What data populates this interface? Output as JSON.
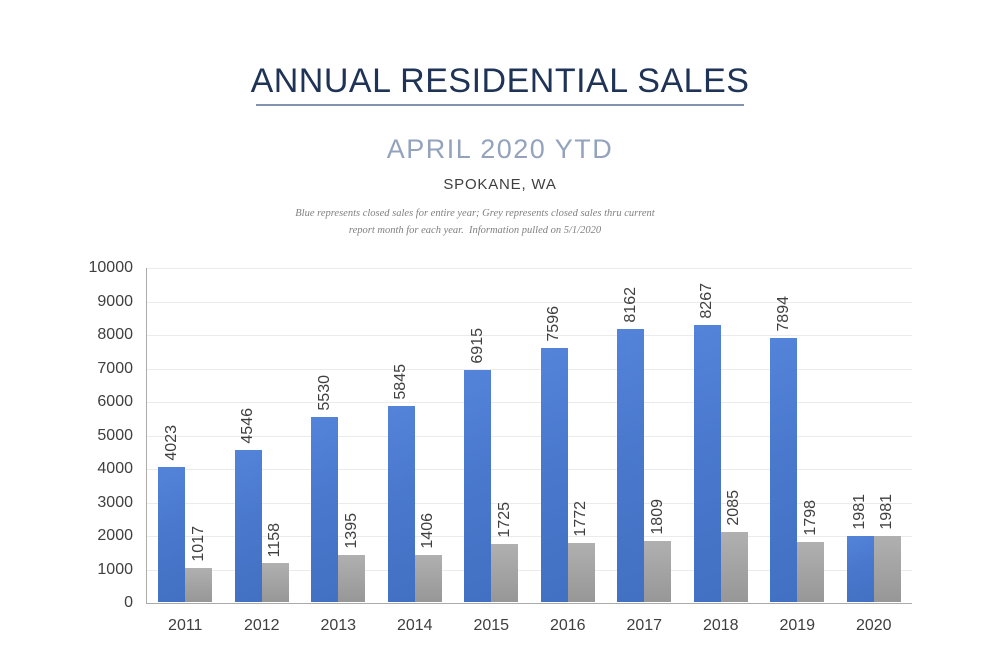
{
  "header": {
    "title": "ANNUAL RESIDENTIAL SALES",
    "subtitle": "APRIL 2020 YTD",
    "location": "SPOKANE, WA",
    "note_line1": "Blue represents closed sales for entire year; Grey represents closed sales thru current",
    "note_line2": "report month for each year.  Information pulled on 5/1/2020"
  },
  "colors": {
    "title_text": "#1f3357",
    "title_underline": "#8193b0",
    "subtitle_text": "#93a3bd",
    "location_text": "#3f3f3f",
    "note_text": "#808080",
    "blue_bar": "#4978cd",
    "grey_bar": "#a2a2a2",
    "gridline": "#ebebeb",
    "axis": "#ababab",
    "axis_text": "#3f3f3f"
  },
  "chart_data": {
    "type": "bar",
    "title": "ANNUAL RESIDENTIAL SALES — APRIL 2020 YTD — SPOKANE, WA",
    "categories": [
      "2011",
      "2012",
      "2013",
      "2014",
      "2015",
      "2016",
      "2017",
      "2018",
      "2019",
      "2020"
    ],
    "series": [
      {
        "name": "blue-closed-sales-entire-year",
        "values": [
          4023,
          4546,
          5530,
          5845,
          6915,
          7596,
          8162,
          8267,
          7894,
          1981
        ]
      },
      {
        "name": "grey-closed-sales-thru-report-month",
        "values": [
          1017,
          1158,
          1395,
          1406,
          1725,
          1772,
          1809,
          2085,
          1798,
          1981
        ]
      }
    ],
    "ylim": [
      0,
      10000
    ],
    "ytick_step": 1000,
    "grid": "horizontal",
    "legend": "none",
    "value_labels": "rotated 90 degrees above bars"
  }
}
